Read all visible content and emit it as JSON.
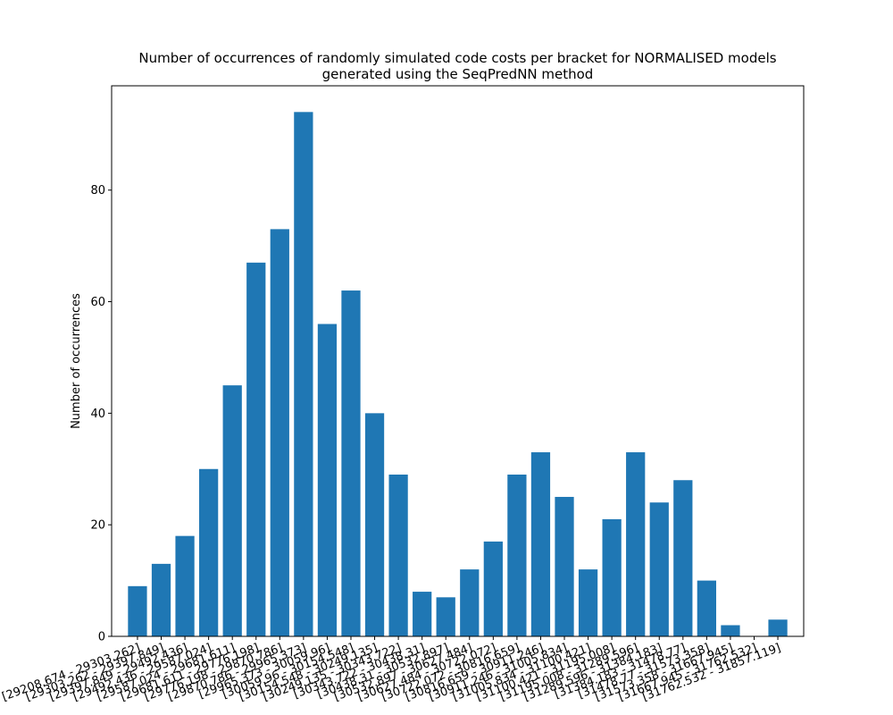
{
  "chart_data": {
    "type": "bar",
    "title": "Number of occurrences of randomly simulated code costs per bracket for NORMALISED models generated using the SeqPredNN method",
    "title_lines": [
      "Number of occurrences of randomly simulated code costs per bracket for NORMALISED models",
      "generated using the SeqPredNN method"
    ],
    "xlabel": "",
    "ylabel": "Number of occurrences",
    "ylim": [
      0,
      98.7
    ],
    "yticks": [
      0,
      20,
      40,
      60,
      80
    ],
    "grid": false,
    "legend": "none",
    "bar_color": "#1f77b4",
    "categories": [
      "[29208.674 - 29303.262]",
      "[29303.262 - 29397.849]",
      "[29397.849 - 29492.436]",
      "[29492.436 - 29587.024]",
      "[29587.024 - 29681.611]",
      "[29681.611 - 29776.198]",
      "[29776.198 - 29870.786]",
      "[29870.786 - 29965.373]",
      "[29965.373 - 30059.96]",
      "[30059.96 - 30154.548]",
      "[30154.548 - 30249.135]",
      "[30249.135 - 30343.722]",
      "[30343.722 - 30438.31]",
      "[30438.31 - 30532.897]",
      "[30532.897 - 30627.484]",
      "[30627.484 - 30722.072]",
      "[30722.072 - 30816.659]",
      "[30816.659 - 30911.246]",
      "[30911.246 - 31005.834]",
      "[31005.834 - 31100.421]",
      "[31100.421 - 31195.008]",
      "[31195.008 - 31289.596]",
      "[31289.596 - 31384.183]",
      "[31384.183 - 31478.77]",
      "[31478.77 - 31573.358]",
      "[31573.358 - 31667.945]",
      "[31667.945 - 31762.532]",
      "[31762.532 - 31857.119]"
    ],
    "values": [
      9,
      13,
      18,
      30,
      45,
      67,
      73,
      94,
      56,
      62,
      40,
      29,
      8,
      7,
      12,
      17,
      29,
      33,
      25,
      12,
      21,
      33,
      24,
      28,
      10,
      2,
      0,
      3
    ]
  }
}
